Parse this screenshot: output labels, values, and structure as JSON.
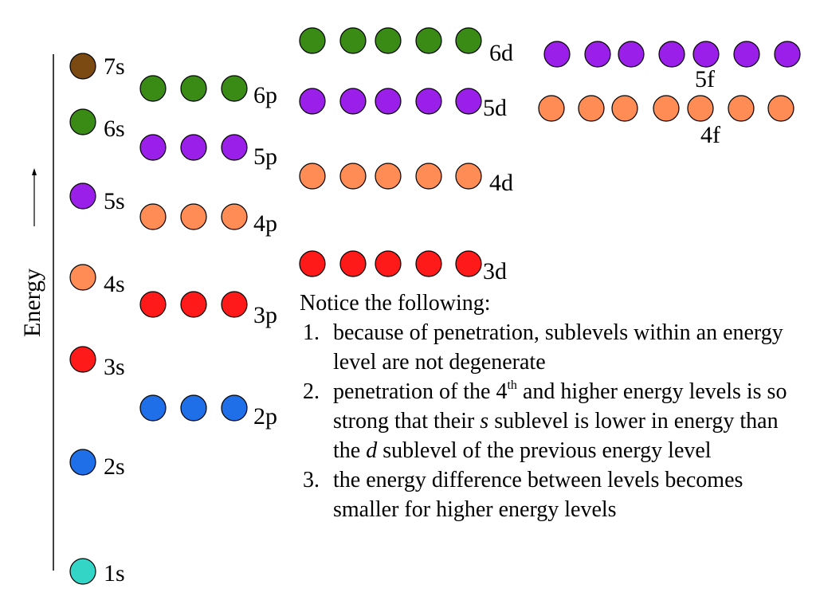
{
  "axis": {
    "label": "Energy"
  },
  "colors": {
    "s1": "#33d6c6",
    "n2": "#1f6fe8",
    "n3": "#ff1a1a",
    "n4": "#ff8c55",
    "n5": "#9a1fe8",
    "n6": "#3a8a16",
    "s7": "#7a4a12",
    "outline": "#000000"
  },
  "sublevels": [
    {
      "label": "1s",
      "orbitals": 1,
      "color_key": "s1"
    },
    {
      "label": "2s",
      "orbitals": 1,
      "color_key": "n2"
    },
    {
      "label": "3s",
      "orbitals": 1,
      "color_key": "n3"
    },
    {
      "label": "4s",
      "orbitals": 1,
      "color_key": "n4"
    },
    {
      "label": "5s",
      "orbitals": 1,
      "color_key": "n5"
    },
    {
      "label": "6s",
      "orbitals": 1,
      "color_key": "n6"
    },
    {
      "label": "7s",
      "orbitals": 1,
      "color_key": "s7"
    },
    {
      "label": "2p",
      "orbitals": 3,
      "color_key": "n2"
    },
    {
      "label": "3p",
      "orbitals": 3,
      "color_key": "n3"
    },
    {
      "label": "4p",
      "orbitals": 3,
      "color_key": "n4"
    },
    {
      "label": "5p",
      "orbitals": 3,
      "color_key": "n5"
    },
    {
      "label": "6p",
      "orbitals": 3,
      "color_key": "n6"
    },
    {
      "label": "3d",
      "orbitals": 5,
      "color_key": "n3"
    },
    {
      "label": "4d",
      "orbitals": 5,
      "color_key": "n4"
    },
    {
      "label": "5d",
      "orbitals": 5,
      "color_key": "n5"
    },
    {
      "label": "6d",
      "orbitals": 5,
      "color_key": "n6"
    },
    {
      "label": "4f",
      "orbitals": 7,
      "color_key": "n4"
    },
    {
      "label": "5f",
      "orbitals": 7,
      "color_key": "n5"
    }
  ],
  "notes": {
    "intro": "Notice the following:",
    "items": [
      {
        "num": "1.",
        "text": "because of penetration, sublevels within an energy level are not degenerate"
      },
      {
        "num": "2.",
        "pre": "penetration of the 4",
        "sup": "th",
        "mid": " and higher energy levels is so strong that their ",
        "italic1": "s",
        "mid2": " sublevel is lower in energy than the ",
        "italic2": "d",
        "post": " sublevel of the previous energy level"
      },
      {
        "num": "3.",
        "text": "the energy difference between levels becomes smaller for higher energy levels"
      }
    ]
  }
}
